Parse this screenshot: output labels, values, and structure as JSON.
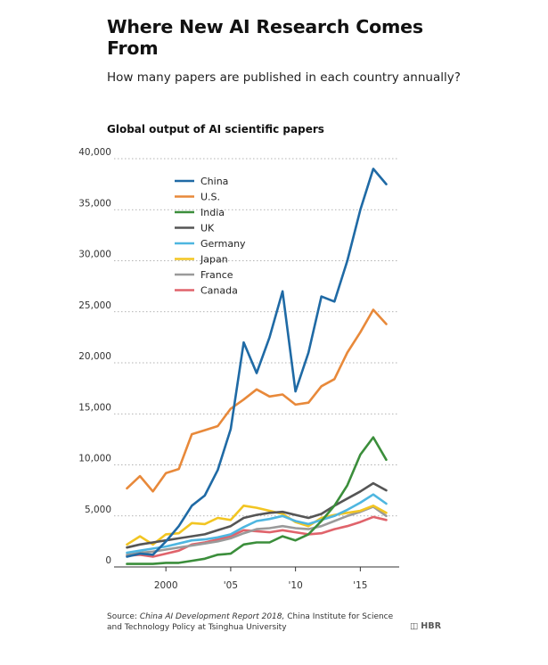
{
  "header": {
    "title": "Where New AI Research Comes From",
    "subtitle": "How many papers are published in each country annually?"
  },
  "source": {
    "prefix": "Source: ",
    "italic": "China AI Development Report 2018,",
    "suffix": " China Institute for Science and Technology Policy at Tsinghua University"
  },
  "logo": "HBR",
  "chart_data": {
    "type": "line",
    "title": "Global output of AI scientific papers",
    "x": [
      1997,
      1998,
      1999,
      2000,
      2001,
      2002,
      2003,
      2004,
      2005,
      2006,
      2007,
      2008,
      2009,
      2010,
      2011,
      2012,
      2013,
      2014,
      2015,
      2016,
      2017
    ],
    "xlim": [
      1996,
      2018
    ],
    "ylim": [
      0,
      40000
    ],
    "y_ticks": [
      0,
      5000,
      10000,
      15000,
      20000,
      25000,
      30000,
      35000,
      40000
    ],
    "y_tick_labels": [
      "0",
      "5,000",
      "10,000",
      "15,000",
      "20,000",
      "25,000",
      "30,000",
      "35,000",
      "40,000"
    ],
    "x_ticks": [
      2000,
      2005,
      2010,
      2015
    ],
    "x_tick_labels": [
      "2000",
      "'05",
      "'10",
      "'15"
    ],
    "grid": "horizontal-dotted",
    "legend_position": "top-left",
    "series": [
      {
        "name": "China",
        "color": "#1f6aa5",
        "values": [
          1000,
          1300,
          1200,
          2500,
          4000,
          6000,
          7000,
          9500,
          13500,
          22000,
          19000,
          22500,
          27000,
          17200,
          21000,
          26500,
          26000,
          30000,
          35000,
          39000,
          37500
        ]
      },
      {
        "name": "U.S.",
        "color": "#e8893a",
        "values": [
          7700,
          8900,
          7400,
          9200,
          9600,
          13000,
          13400,
          13800,
          15500,
          16400,
          17400,
          16700,
          16900,
          15900,
          16100,
          17700,
          18400,
          21000,
          23000,
          25200,
          23800
        ]
      },
      {
        "name": "India",
        "color": "#3b8e3b",
        "values": [
          300,
          300,
          300,
          400,
          400,
          600,
          800,
          1200,
          1300,
          2200,
          2400,
          2400,
          3000,
          2600,
          3200,
          4500,
          6000,
          8000,
          11000,
          12700,
          10500
        ]
      },
      {
        "name": "UK",
        "color": "#555555",
        "values": [
          1900,
          2200,
          2400,
          2600,
          2800,
          3000,
          3200,
          3600,
          4000,
          4800,
          5100,
          5300,
          5400,
          5100,
          4800,
          5200,
          6000,
          6700,
          7400,
          8200,
          7500
        ]
      },
      {
        "name": "Germany",
        "color": "#4eb6e0",
        "values": [
          1400,
          1600,
          1800,
          2000,
          2300,
          2600,
          2700,
          2900,
          3200,
          3900,
          4500,
          4700,
          5000,
          4500,
          4200,
          4600,
          5000,
          5600,
          6300,
          7100,
          6200
        ]
      },
      {
        "name": "Japan",
        "color": "#f2c522",
        "values": [
          2200,
          3000,
          2200,
          3200,
          3300,
          4300,
          4200,
          4800,
          4600,
          6000,
          5800,
          5500,
          5200,
          4400,
          4000,
          4800,
          5100,
          5300,
          5500,
          6000,
          5300
        ]
      },
      {
        "name": "France",
        "color": "#9a9a9a",
        "values": [
          1200,
          1400,
          1500,
          1700,
          1900,
          2100,
          2300,
          2500,
          2800,
          3300,
          3700,
          3800,
          4000,
          3800,
          3700,
          4000,
          4500,
          5000,
          5400,
          5900,
          5000
        ]
      },
      {
        "name": "Canada",
        "color": "#e0636b",
        "values": [
          1100,
          1200,
          1000,
          1300,
          1600,
          2200,
          2400,
          2700,
          3000,
          3600,
          3500,
          3400,
          3600,
          3400,
          3200,
          3300,
          3700,
          4000,
          4400,
          4900,
          4600
        ]
      }
    ]
  }
}
